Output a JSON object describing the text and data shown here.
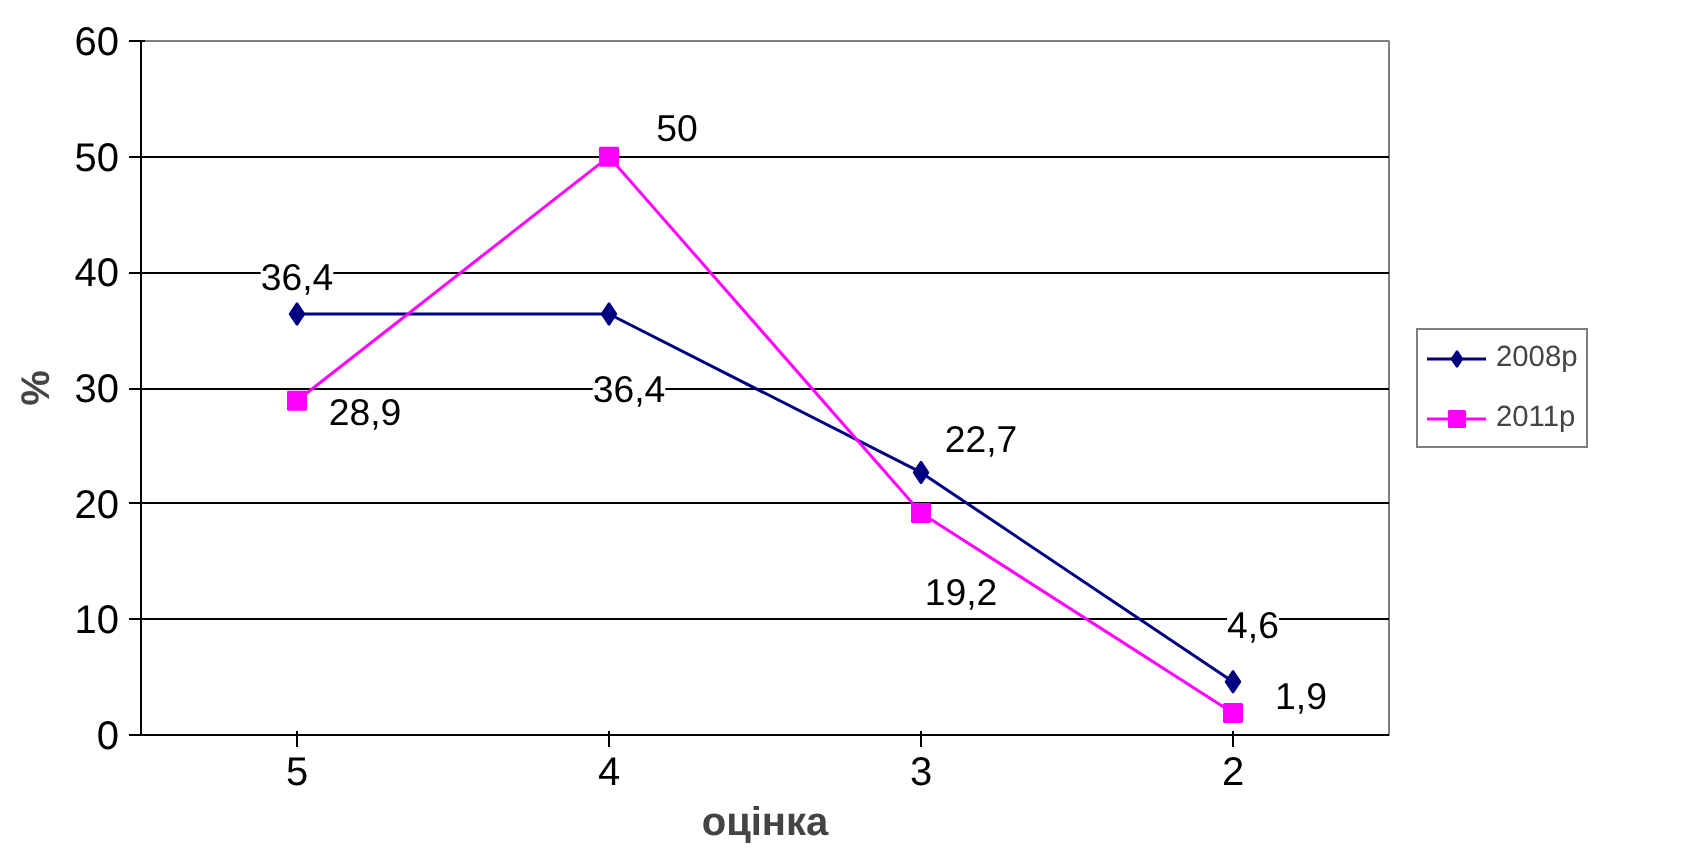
{
  "chart_data": {
    "type": "line",
    "xlabel": "оцінка",
    "ylabel": "%",
    "categories": [
      "5",
      "4",
      "3",
      "2"
    ],
    "series": [
      {
        "name": "2008р",
        "color": "#000080",
        "marker": "diamond",
        "values": [
          36.4,
          36.4,
          22.7,
          4.6
        ],
        "value_labels": [
          "36,4",
          "36,4",
          "22,7",
          "4,6"
        ]
      },
      {
        "name": "2011р",
        "color": "#ff00ff",
        "marker": "square",
        "values": [
          28.9,
          50,
          19.2,
          1.9
        ],
        "value_labels": [
          "28,9",
          "50",
          "19,2",
          "1,9"
        ]
      }
    ],
    "ylim": [
      0,
      60
    ],
    "yticks": [
      0,
      10,
      20,
      30,
      40,
      50,
      60
    ],
    "grid": "y",
    "legend": "right"
  }
}
